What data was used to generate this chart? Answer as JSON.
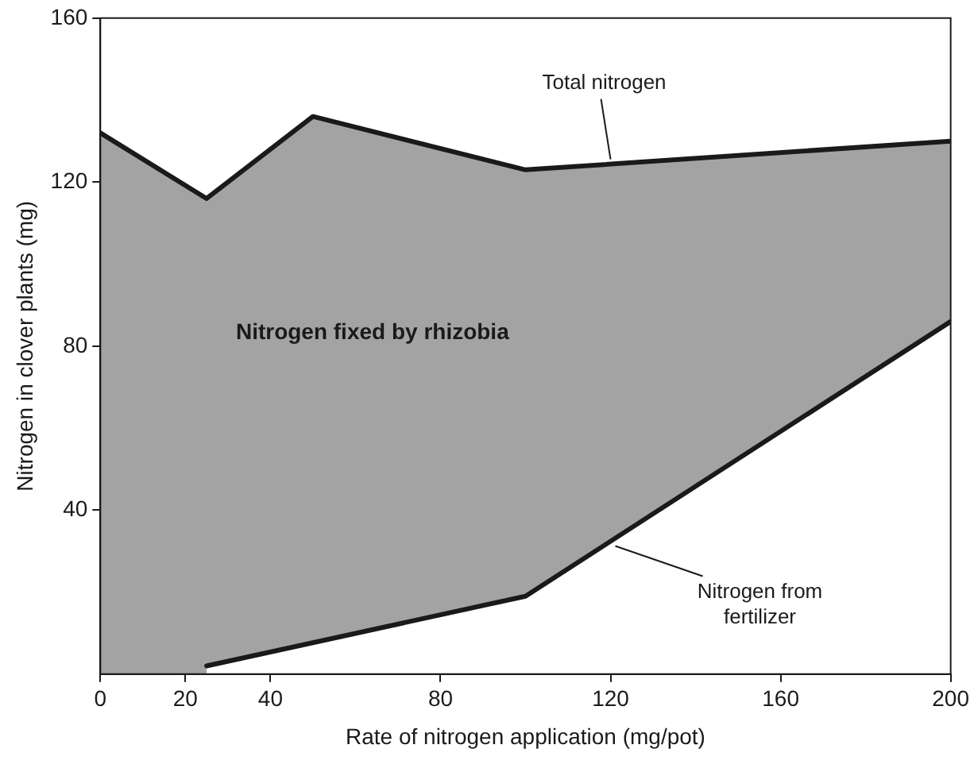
{
  "chart_data": {
    "type": "area",
    "xlabel": "Rate of nitrogen application (mg/pot)",
    "ylabel": "Nitrogen in clover plants (mg)",
    "xlim": [
      0,
      200
    ],
    "xticks": [
      0,
      20,
      40,
      80,
      120,
      160,
      200
    ],
    "ylim": [
      0,
      160
    ],
    "yticks": [
      40,
      80,
      120,
      160
    ],
    "grid": false,
    "legend": false,
    "series": [
      {
        "name": "Total nitrogen",
        "type": "area",
        "color": "#a3a3a3",
        "x": [
          0,
          25,
          50,
          100,
          200
        ],
        "values": [
          132,
          116,
          136,
          123,
          130
        ]
      },
      {
        "name": "Nitrogen from fertilizer",
        "type": "line",
        "color": "#1a1a1a",
        "x": [
          25,
          100,
          200
        ],
        "values": [
          2,
          19,
          86
        ]
      }
    ],
    "annotations": [
      "Nitrogen fixed by rhizobia"
    ]
  }
}
